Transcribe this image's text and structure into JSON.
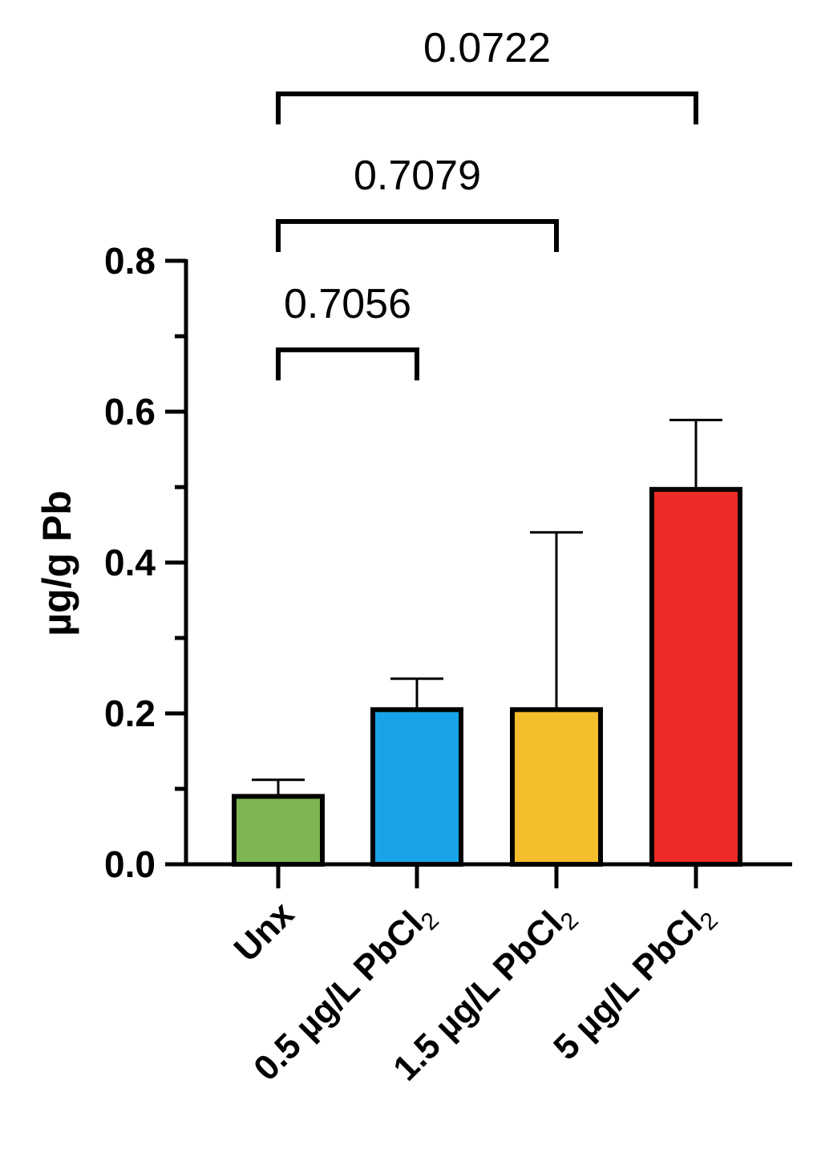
{
  "chart_data": {
    "type": "bar",
    "ylabel": "µg/g Pb",
    "ylim": [
      0,
      0.8
    ],
    "y_major_ticks": [
      0.0,
      0.2,
      0.4,
      0.6,
      0.8
    ],
    "y_tick_labels": [
      "0.0",
      "0.2",
      "0.4",
      "0.6",
      "0.8"
    ],
    "y_minor_ticks": [
      0.1,
      0.3,
      0.5,
      0.7
    ],
    "grid": false,
    "legend": "none",
    "categories": [
      {
        "label": "Unx",
        "subscript": ""
      },
      {
        "label": "0.5 µg/L PbCl",
        "subscript": "2"
      },
      {
        "label": "1.5 µg/L PbCl",
        "subscript": "2"
      },
      {
        "label": "5 µg/L PbCl",
        "subscript": "2"
      }
    ],
    "values": [
      0.09,
      0.205,
      0.205,
      0.497
    ],
    "error_upper": [
      0.112,
      0.246,
      0.44,
      0.589
    ],
    "colors": [
      "#7db653",
      "#18a3e8",
      "#f4bd2c",
      "#ee2b26"
    ],
    "comparisons": [
      {
        "from": 0,
        "to": 1,
        "label": "0.7056"
      },
      {
        "from": 0,
        "to": 2,
        "label": "0.7079"
      },
      {
        "from": 0,
        "to": 3,
        "label": "0.0722"
      }
    ]
  }
}
